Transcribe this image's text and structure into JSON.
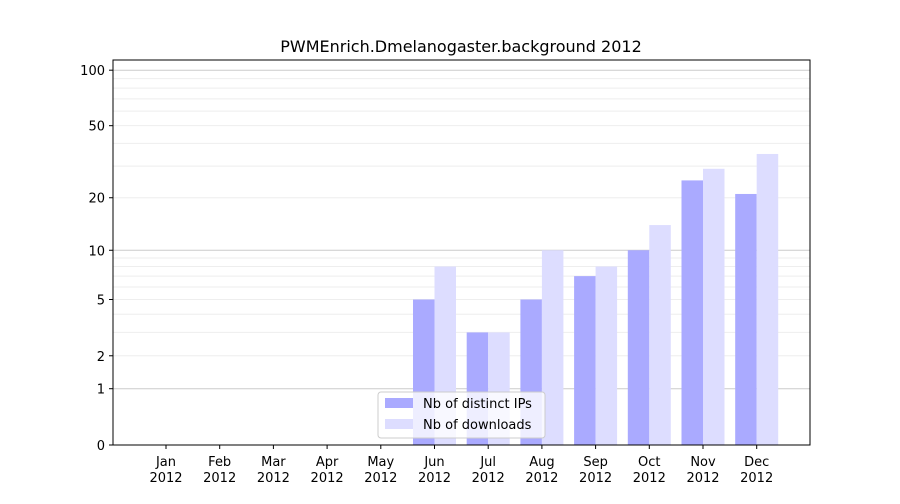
{
  "chart_data": {
    "type": "bar",
    "title": "PWMEnrich.Dmelanogaster.background 2012",
    "xlabel": "",
    "ylabel": "",
    "yscale": "symlog",
    "ylim": [
      0,
      110
    ],
    "yticks": [
      0,
      1,
      2,
      5,
      10,
      20,
      50,
      100
    ],
    "categories": [
      "Jan\n2012",
      "Feb\n2012",
      "Mar\n2012",
      "Apr\n2012",
      "May\n2012",
      "Jun\n2012",
      "Jul\n2012",
      "Aug\n2012",
      "Sep\n2012",
      "Oct\n2012",
      "Nov\n2012",
      "Dec\n2012"
    ],
    "series": [
      {
        "name": "Nb of distinct IPs",
        "color": "#aaaaff",
        "values": [
          0,
          0,
          0,
          0,
          0,
          5,
          3,
          5,
          7,
          10,
          25,
          21
        ]
      },
      {
        "name": "Nb of downloads",
        "color": "#ddddff",
        "values": [
          0,
          0,
          0,
          0,
          0,
          8,
          3,
          10,
          8,
          14,
          29,
          35
        ]
      }
    ],
    "legend": "lower-center",
    "grid": true
  }
}
